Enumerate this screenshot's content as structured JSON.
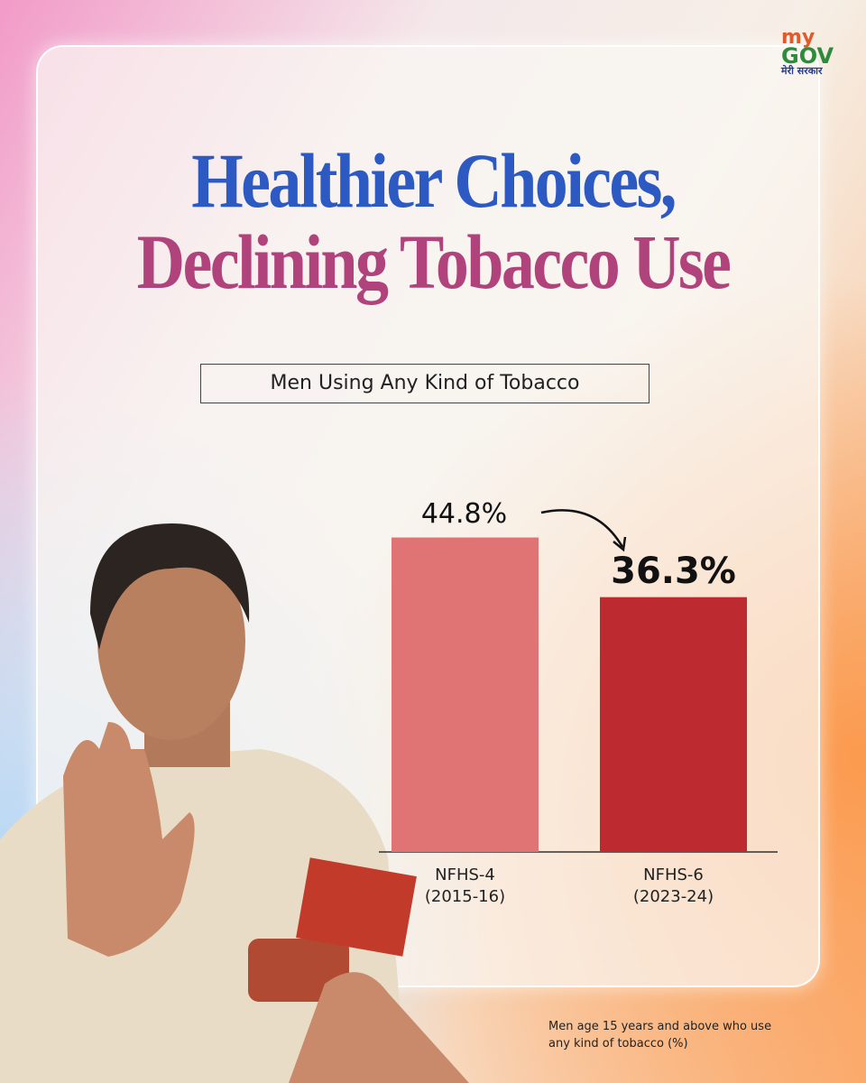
{
  "logo": {
    "top": "my",
    "bottom": "GOV",
    "tagline": "मेरी सरकार"
  },
  "chart_data": {
    "type": "bar",
    "title": [
      "Healthier Choices,",
      "Declining Tobacco Use"
    ],
    "subtitle": "Men Using Any Kind of Tobacco",
    "categories": [
      "NFHS-4 (2015-16)",
      "NFHS-6 (2023-24)"
    ],
    "values": [
      44.8,
      36.3
    ],
    "value_labels": [
      "44.8%",
      "36.3%"
    ],
    "colors": [
      "#e07474",
      "#bd2a2f"
    ],
    "ylim": [
      0,
      45
    ],
    "footnote": "Men age 15 years and above who use any kind of tobacco (%)"
  }
}
